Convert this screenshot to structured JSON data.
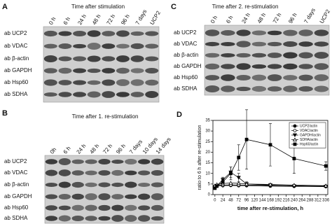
{
  "panels": [
    {
      "label": "A",
      "title": "Time after stimulation",
      "lanes": [
        "0 h",
        "6 h",
        "24 h",
        "48 h",
        "72 h",
        "96 h",
        "7 days",
        "UCP2"
      ],
      "rows": [
        "ab UCP2",
        "ab VDAC",
        "ab β-actin",
        "ab GAPDH",
        "ab Hsp60",
        "ab SDHA"
      ]
    },
    {
      "label": "C",
      "title": "Time after 2. re-stimulation",
      "lanes": [
        "0 h",
        "6 h",
        "24 h",
        "48 h",
        "72 h",
        "96 h",
        "7 days",
        "UCP2"
      ],
      "rows": [
        "ab UCP2",
        "ab VDAC",
        "ab β-actin",
        "ab GAPDH",
        "ab Hsp60",
        "ab SDHA"
      ]
    },
    {
      "label": "B",
      "title": "Time after 1. re-stimulation",
      "lanes": [
        "0h",
        "6 h",
        "24 h",
        "48 h",
        "72 h",
        "96 h",
        "7 days",
        "10 days",
        "14 days"
      ],
      "rows": [
        "ab UCP2",
        "ab VDAC",
        "ab β-actin",
        "ab GAPDH",
        "ab Hsp60",
        "ab SDHA"
      ]
    }
  ],
  "chart_data": {
    "type": "line",
    "panel_label": "D",
    "x_label": "time after re-stimulation, h",
    "y_label": "ratio to 6 h after re-stimulation",
    "x": [
      0,
      6,
      24,
      48,
      72,
      96,
      168,
      240,
      336
    ],
    "xlim": [
      -6,
      342
    ],
    "xticks": [
      0,
      24,
      48,
      72,
      96,
      120,
      144,
      168,
      192,
      216,
      240,
      264,
      288,
      312,
      336
    ],
    "ylim": [
      0,
      35
    ],
    "yticks": [
      0,
      5,
      10,
      15,
      20,
      25,
      30,
      35
    ],
    "legend": "upper right",
    "series": [
      {
        "name": "UCP2/actin",
        "color": "#000000",
        "marker": "circle-filled",
        "values": [
          3.8,
          4.0,
          4.2,
          4.3,
          4.2,
          4.2,
          4.0,
          3.9,
          3.8
        ]
      },
      {
        "name": "VDAC/actin",
        "color": "#000000",
        "marker": "circle-open",
        "values": [
          4.0,
          4.3,
          4.5,
          4.6,
          4.5,
          4.5,
          4.3,
          4.2,
          4.0
        ]
      },
      {
        "name": "GAPDH/actin",
        "color": "#000000",
        "marker": "triangle-down",
        "values": [
          3.5,
          4.2,
          7.0,
          10.5,
          8.0,
          5.0,
          4.5,
          4.0,
          3.8
        ],
        "errors": [
          0.5,
          0.6,
          1.2,
          2.5,
          2.0,
          1.0,
          0.5,
          0.5,
          0.4
        ]
      },
      {
        "name": "SDHA/actin",
        "color": "#000000",
        "marker": "triangle-open",
        "values": [
          4.2,
          4.8,
          5.2,
          5.5,
          5.3,
          5.0,
          4.8,
          4.5,
          4.2
        ]
      },
      {
        "name": "Hsp60/actin",
        "color": "#000000",
        "marker": "square-filled",
        "values": [
          3.0,
          4.0,
          6.0,
          10.0,
          17.5,
          26.0,
          23.5,
          17.0,
          13.5
        ],
        "errors": [
          0.5,
          0.6,
          1.5,
          3.0,
          6.0,
          14.0,
          10.0,
          7.0,
          2.0
        ]
      }
    ]
  }
}
